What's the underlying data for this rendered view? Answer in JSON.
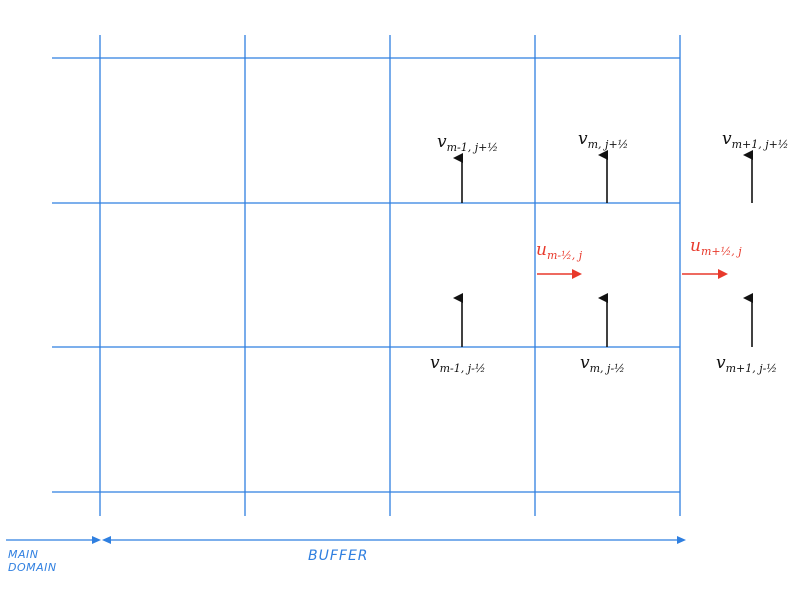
{
  "colors": {
    "grid": "#2f7fe0",
    "v_arrow": "#111111",
    "u_arrow": "#e8392b",
    "region_label": "#2f7fe0"
  },
  "labels": {
    "v_top_left": {
      "sym": "v",
      "sub": "m-1, j+½"
    },
    "v_top_mid": {
      "sym": "v",
      "sub": "m, j+½"
    },
    "v_top_right": {
      "sym": "v",
      "sub": "m+1, j+½"
    },
    "v_bot_left": {
      "sym": "v",
      "sub": "m-1, j-½"
    },
    "v_bot_mid": {
      "sym": "v",
      "sub": "m, j-½"
    },
    "v_bot_right": {
      "sym": "v",
      "sub": "m+1, j-½"
    },
    "u_left": {
      "sym": "u",
      "sub": "m-½, j"
    },
    "u_right": {
      "sym": "u",
      "sub": "m+½, j"
    }
  },
  "regions": {
    "main_domain_line1": "MAIN",
    "main_domain_line2": "DOMAIN",
    "buffer": "BUFFER"
  }
}
